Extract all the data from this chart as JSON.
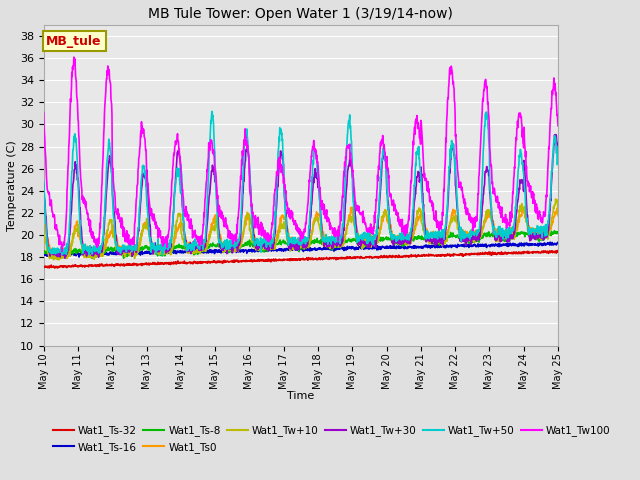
{
  "title": "MB Tule Tower: Open Water 1 (3/19/14-now)",
  "xlabel": "Time",
  "ylabel": "Temperature (C)",
  "ylim": [
    10,
    39
  ],
  "yticks": [
    10,
    12,
    14,
    16,
    18,
    20,
    22,
    24,
    26,
    28,
    30,
    32,
    34,
    36,
    38
  ],
  "background_color": "#e0e0e0",
  "plot_bg": "#e8e8e8",
  "grid_color": "#ffffff",
  "series": {
    "Wat1_Ts-32": {
      "color": "#dd0000",
      "lw": 1.2
    },
    "Wat1_Ts-16": {
      "color": "#0000cc",
      "lw": 1.2
    },
    "Wat1_Ts-8": {
      "color": "#00bb00",
      "lw": 1.2
    },
    "Wat1_Ts0": {
      "color": "#ff9900",
      "lw": 1.2
    },
    "Wat1_Tw+10": {
      "color": "#bbbb00",
      "lw": 1.2
    },
    "Wat1_Tw+30": {
      "color": "#9900cc",
      "lw": 1.2
    },
    "Wat1_Tw+50": {
      "color": "#00cccc",
      "lw": 1.2
    },
    "Wat1_Tw100": {
      "color": "#ff00ff",
      "lw": 1.2
    }
  },
  "annotation_box": {
    "text": "MB_tule",
    "facecolor": "#ffffcc",
    "edgecolor": "#999900",
    "textcolor": "#cc0000",
    "fontsize": 9,
    "fontweight": "bold"
  }
}
